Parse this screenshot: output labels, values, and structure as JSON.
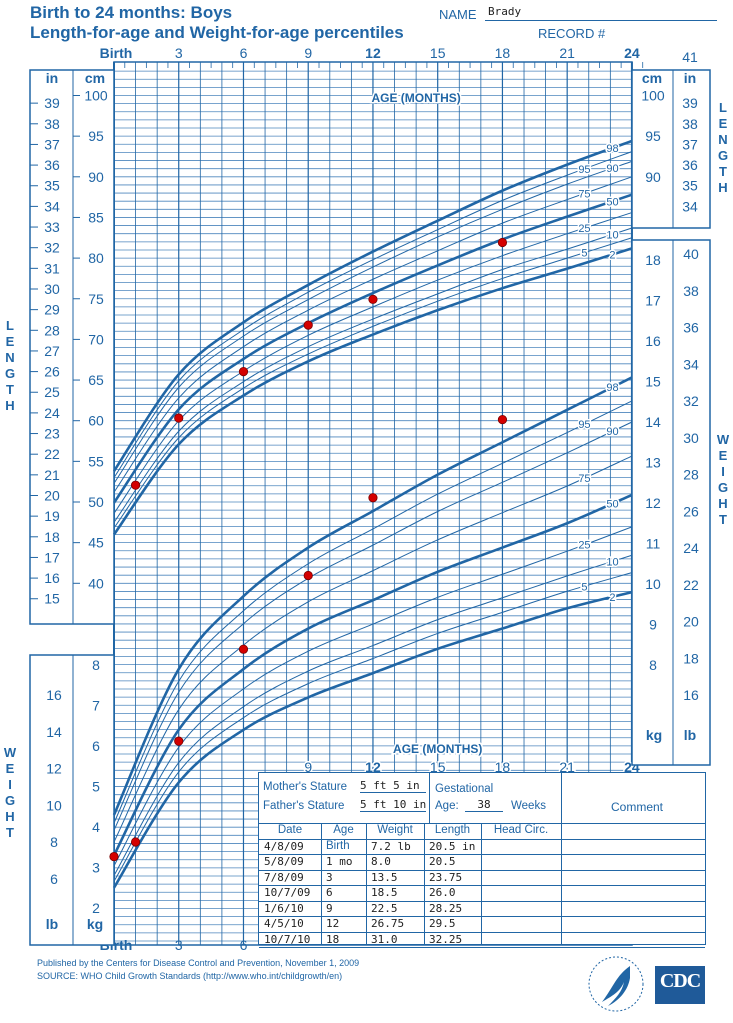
{
  "header": {
    "title_line1": "Birth to 24 months: Boys",
    "title_line2": "Length-for-age and Weight-for-age percentiles",
    "name_label": "NAME",
    "name_value": "Brady",
    "record_label": "RECORD #"
  },
  "chart_data": {
    "type": "line",
    "x_label": "AGE (MONTHS)",
    "x_unit": "months",
    "x_range": [
      0,
      24
    ],
    "x_ticks_top": [
      "Birth",
      "3",
      "6",
      "9",
      "12",
      "15",
      "18",
      "21",
      "24"
    ],
    "x_ticks_bottom_left": [
      "Birth",
      "3",
      "6"
    ],
    "x_ticks_bottom_right": [
      "9",
      "12",
      "15",
      "18",
      "21",
      "24"
    ],
    "bold_ticks": [
      "12",
      "24"
    ],
    "top_right_inch_label": "41",
    "grid": true,
    "colors": {
      "ink": "#2166a5",
      "grid": "#4d86bd",
      "point": "#d40000"
    },
    "percentile_months": [
      0,
      3,
      6,
      9,
      12,
      15,
      18,
      21,
      24
    ],
    "length": {
      "axis_title": "LENGTH",
      "unit_cm": "cm",
      "unit_in": "in",
      "cm_range": [
        40,
        100
      ],
      "left_cm_ticks": [
        40,
        45,
        50,
        55,
        60,
        65,
        70,
        75,
        80,
        85,
        90,
        95,
        100
      ],
      "left_in_ticks": [
        15,
        16,
        17,
        18,
        19,
        20,
        21,
        22,
        23,
        24,
        25,
        26,
        27,
        28,
        29,
        30,
        31,
        32,
        33,
        34,
        35,
        36,
        37,
        38,
        39
      ],
      "right_cm_ticks": [
        90,
        95,
        100
      ],
      "right_in_ticks": [
        34,
        35,
        36,
        37,
        38,
        39
      ],
      "percentiles": [
        {
          "name": "2",
          "values": [
            46.0,
            57.1,
            63.1,
            67.3,
            70.6,
            73.6,
            76.3,
            78.7,
            81.2
          ],
          "bold": true
        },
        {
          "name": "5",
          "values": [
            46.8,
            57.9,
            64.0,
            68.2,
            71.6,
            74.7,
            77.5,
            80.0,
            82.5
          ]
        },
        {
          "name": "10",
          "values": [
            47.5,
            58.7,
            64.8,
            69.1,
            72.5,
            75.6,
            78.6,
            81.1,
            83.7
          ]
        },
        {
          "name": "25",
          "values": [
            48.6,
            60.0,
            66.1,
            70.5,
            74.0,
            77.3,
            80.3,
            83.0,
            85.6
          ]
        },
        {
          "name": "50",
          "values": [
            49.9,
            61.4,
            67.6,
            72.0,
            75.7,
            79.1,
            82.3,
            85.1,
            87.8
          ],
          "bold": true
        },
        {
          "name": "75",
          "values": [
            51.2,
            62.8,
            69.1,
            73.6,
            77.4,
            80.9,
            84.3,
            87.2,
            90.0
          ]
        },
        {
          "name": "90",
          "values": [
            52.3,
            64.1,
            70.4,
            74.9,
            78.9,
            82.6,
            86.0,
            89.1,
            91.9
          ]
        },
        {
          "name": "95",
          "values": [
            53.0,
            64.9,
            71.2,
            75.8,
            79.8,
            83.5,
            87.1,
            90.2,
            93.1
          ]
        },
        {
          "name": "98",
          "values": [
            53.8,
            65.7,
            72.1,
            76.7,
            80.8,
            84.6,
            88.3,
            91.5,
            94.4
          ],
          "bold": true
        }
      ],
      "patient_points_cm": [
        {
          "age": 1,
          "value": 52.07
        },
        {
          "age": 3,
          "value": 60.33
        },
        {
          "age": 6,
          "value": 66.04
        },
        {
          "age": 9,
          "value": 71.76
        },
        {
          "age": 12,
          "value": 74.93
        },
        {
          "age": 18,
          "value": 81.92
        }
      ]
    },
    "weight": {
      "axis_title": "WEIGHT",
      "unit_kg": "kg",
      "unit_lb": "lb",
      "kg_range": [
        2,
        18
      ],
      "left_kg_ticks": [
        2,
        3,
        4,
        5,
        6,
        7,
        8
      ],
      "left_lb_ticks": [
        6,
        8,
        10,
        12,
        14,
        16
      ],
      "right_kg_ticks": [
        8,
        9,
        10,
        11,
        12,
        13,
        14,
        15,
        16,
        17,
        18
      ],
      "right_lb_ticks": [
        16,
        18,
        20,
        22,
        24,
        26,
        28,
        30,
        32,
        34,
        36,
        38,
        40
      ],
      "percentiles": [
        {
          "name": "2",
          "values": [
            2.5,
            5.1,
            6.4,
            7.2,
            7.8,
            8.4,
            8.9,
            9.4,
            9.8
          ],
          "bold": true
        },
        {
          "name": "5",
          "values": [
            2.66,
            5.36,
            6.7,
            7.54,
            8.16,
            8.78,
            9.3,
            9.82,
            10.28
          ]
        },
        {
          "name": "10",
          "values": [
            2.8,
            5.59,
            6.97,
            7.85,
            8.48,
            9.12,
            9.66,
            10.2,
            10.71
          ]
        },
        {
          "name": "25",
          "values": [
            3.04,
            5.97,
            7.41,
            8.34,
            9.01,
            9.67,
            10.24,
            10.81,
            11.41
          ]
        },
        {
          "name": "50",
          "values": [
            3.3,
            6.4,
            7.9,
            8.9,
            9.6,
            10.3,
            10.9,
            11.5,
            12.2
          ],
          "bold": true
        },
        {
          "name": "75",
          "values": [
            3.63,
            6.9,
            8.49,
            9.56,
            10.33,
            11.09,
            11.76,
            12.42,
            13.16
          ]
        },
        {
          "name": "90",
          "values": [
            3.92,
            7.33,
            9.02,
            10.14,
            10.96,
            11.79,
            12.51,
            13.24,
            14.0
          ]
        },
        {
          "name": "95",
          "values": [
            4.1,
            7.6,
            9.34,
            10.5,
            11.36,
            12.22,
            12.98,
            13.74,
            14.52
          ]
        },
        {
          "name": "98",
          "values": [
            4.3,
            7.9,
            9.7,
            10.9,
            11.8,
            12.7,
            13.5,
            14.3,
            15.1
          ],
          "bold": true
        }
      ],
      "patient_points_kg": [
        {
          "age": 0,
          "value": 3.27
        },
        {
          "age": 1,
          "value": 3.63
        },
        {
          "age": 3,
          "value": 6.12
        },
        {
          "age": 6,
          "value": 8.39
        },
        {
          "age": 9,
          "value": 10.21
        },
        {
          "age": 12,
          "value": 12.13
        },
        {
          "age": 18,
          "value": 14.06
        }
      ]
    }
  },
  "info": {
    "mother_label": "Mother's Stature",
    "mother_value": "5 ft 5 in",
    "father_label": "Father's Stature",
    "father_value": "5 ft 10 in",
    "gestational_label": "Gestational",
    "age_label": "Age:",
    "gestational_value": "38",
    "weeks_label": "Weeks",
    "comment_label": "Comment",
    "columns": [
      "Date",
      "Age",
      "Weight",
      "Length",
      "Head  Circ."
    ],
    "rows": [
      [
        "4/8/09",
        "Birth",
        "7.2 lb",
        "20.5 in",
        ""
      ],
      [
        "5/8/09",
        "1 mo",
        "8.0",
        "20.5",
        ""
      ],
      [
        "7/8/09",
        "3",
        "13.5",
        "23.75",
        ""
      ],
      [
        "10/7/09",
        "6",
        "18.5",
        "26.0",
        ""
      ],
      [
        "1/6/10",
        "9",
        "22.5",
        "28.25",
        ""
      ],
      [
        "4/5/10",
        "12",
        "26.75",
        "29.5",
        ""
      ],
      [
        "10/7/10",
        "18",
        "31.0",
        "32.25",
        ""
      ]
    ]
  },
  "footer": {
    "line1": "Published by the Centers for Disease Control and Prevention, November 1, 2009",
    "line2": "SOURCE:  WHO Child Growth Standards (http://www.who.int/childgrowth/en)",
    "cdc_logo_text": "CDC",
    "hhs_logo": "hhs-eagle-seal"
  }
}
